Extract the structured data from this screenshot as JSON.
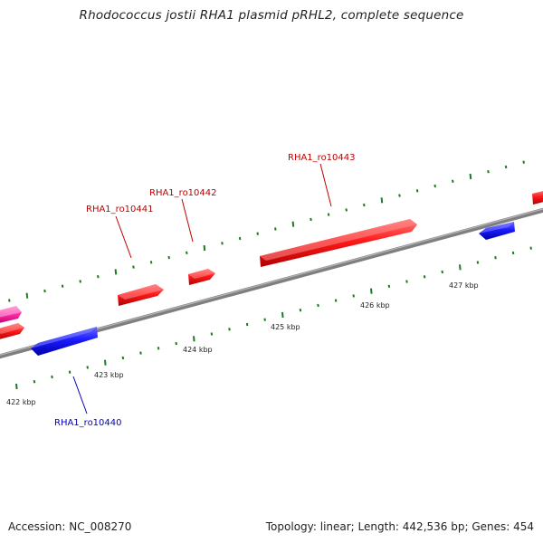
{
  "title": "Rhodococcus jostii RHA1 plasmid pRHL2, complete sequence",
  "footer": {
    "accession": "Accession: NC_008270",
    "summary": "Topology: linear; Length: 442,536 bp; Genes: 454"
  },
  "scale_labels": [
    "422 kbp",
    "423 kbp",
    "424 kbp",
    "425 kbp",
    "426 kbp",
    "427 kbp"
  ],
  "gene_labels": [
    {
      "text": "RHA1_ro10440",
      "color": "#0000c0"
    },
    {
      "text": "RHA1_ro10441",
      "color": "#c00000"
    },
    {
      "text": "RHA1_ro10442",
      "color": "#c00000"
    },
    {
      "text": "RHA1_ro10443",
      "color": "#c00000"
    }
  ],
  "colors": {
    "forward_gene": "#ff0000",
    "reverse_gene": "#0000ff",
    "other_feature": "#ff3399",
    "backbone": "#808080",
    "ticks": "#1f7a1f"
  }
}
